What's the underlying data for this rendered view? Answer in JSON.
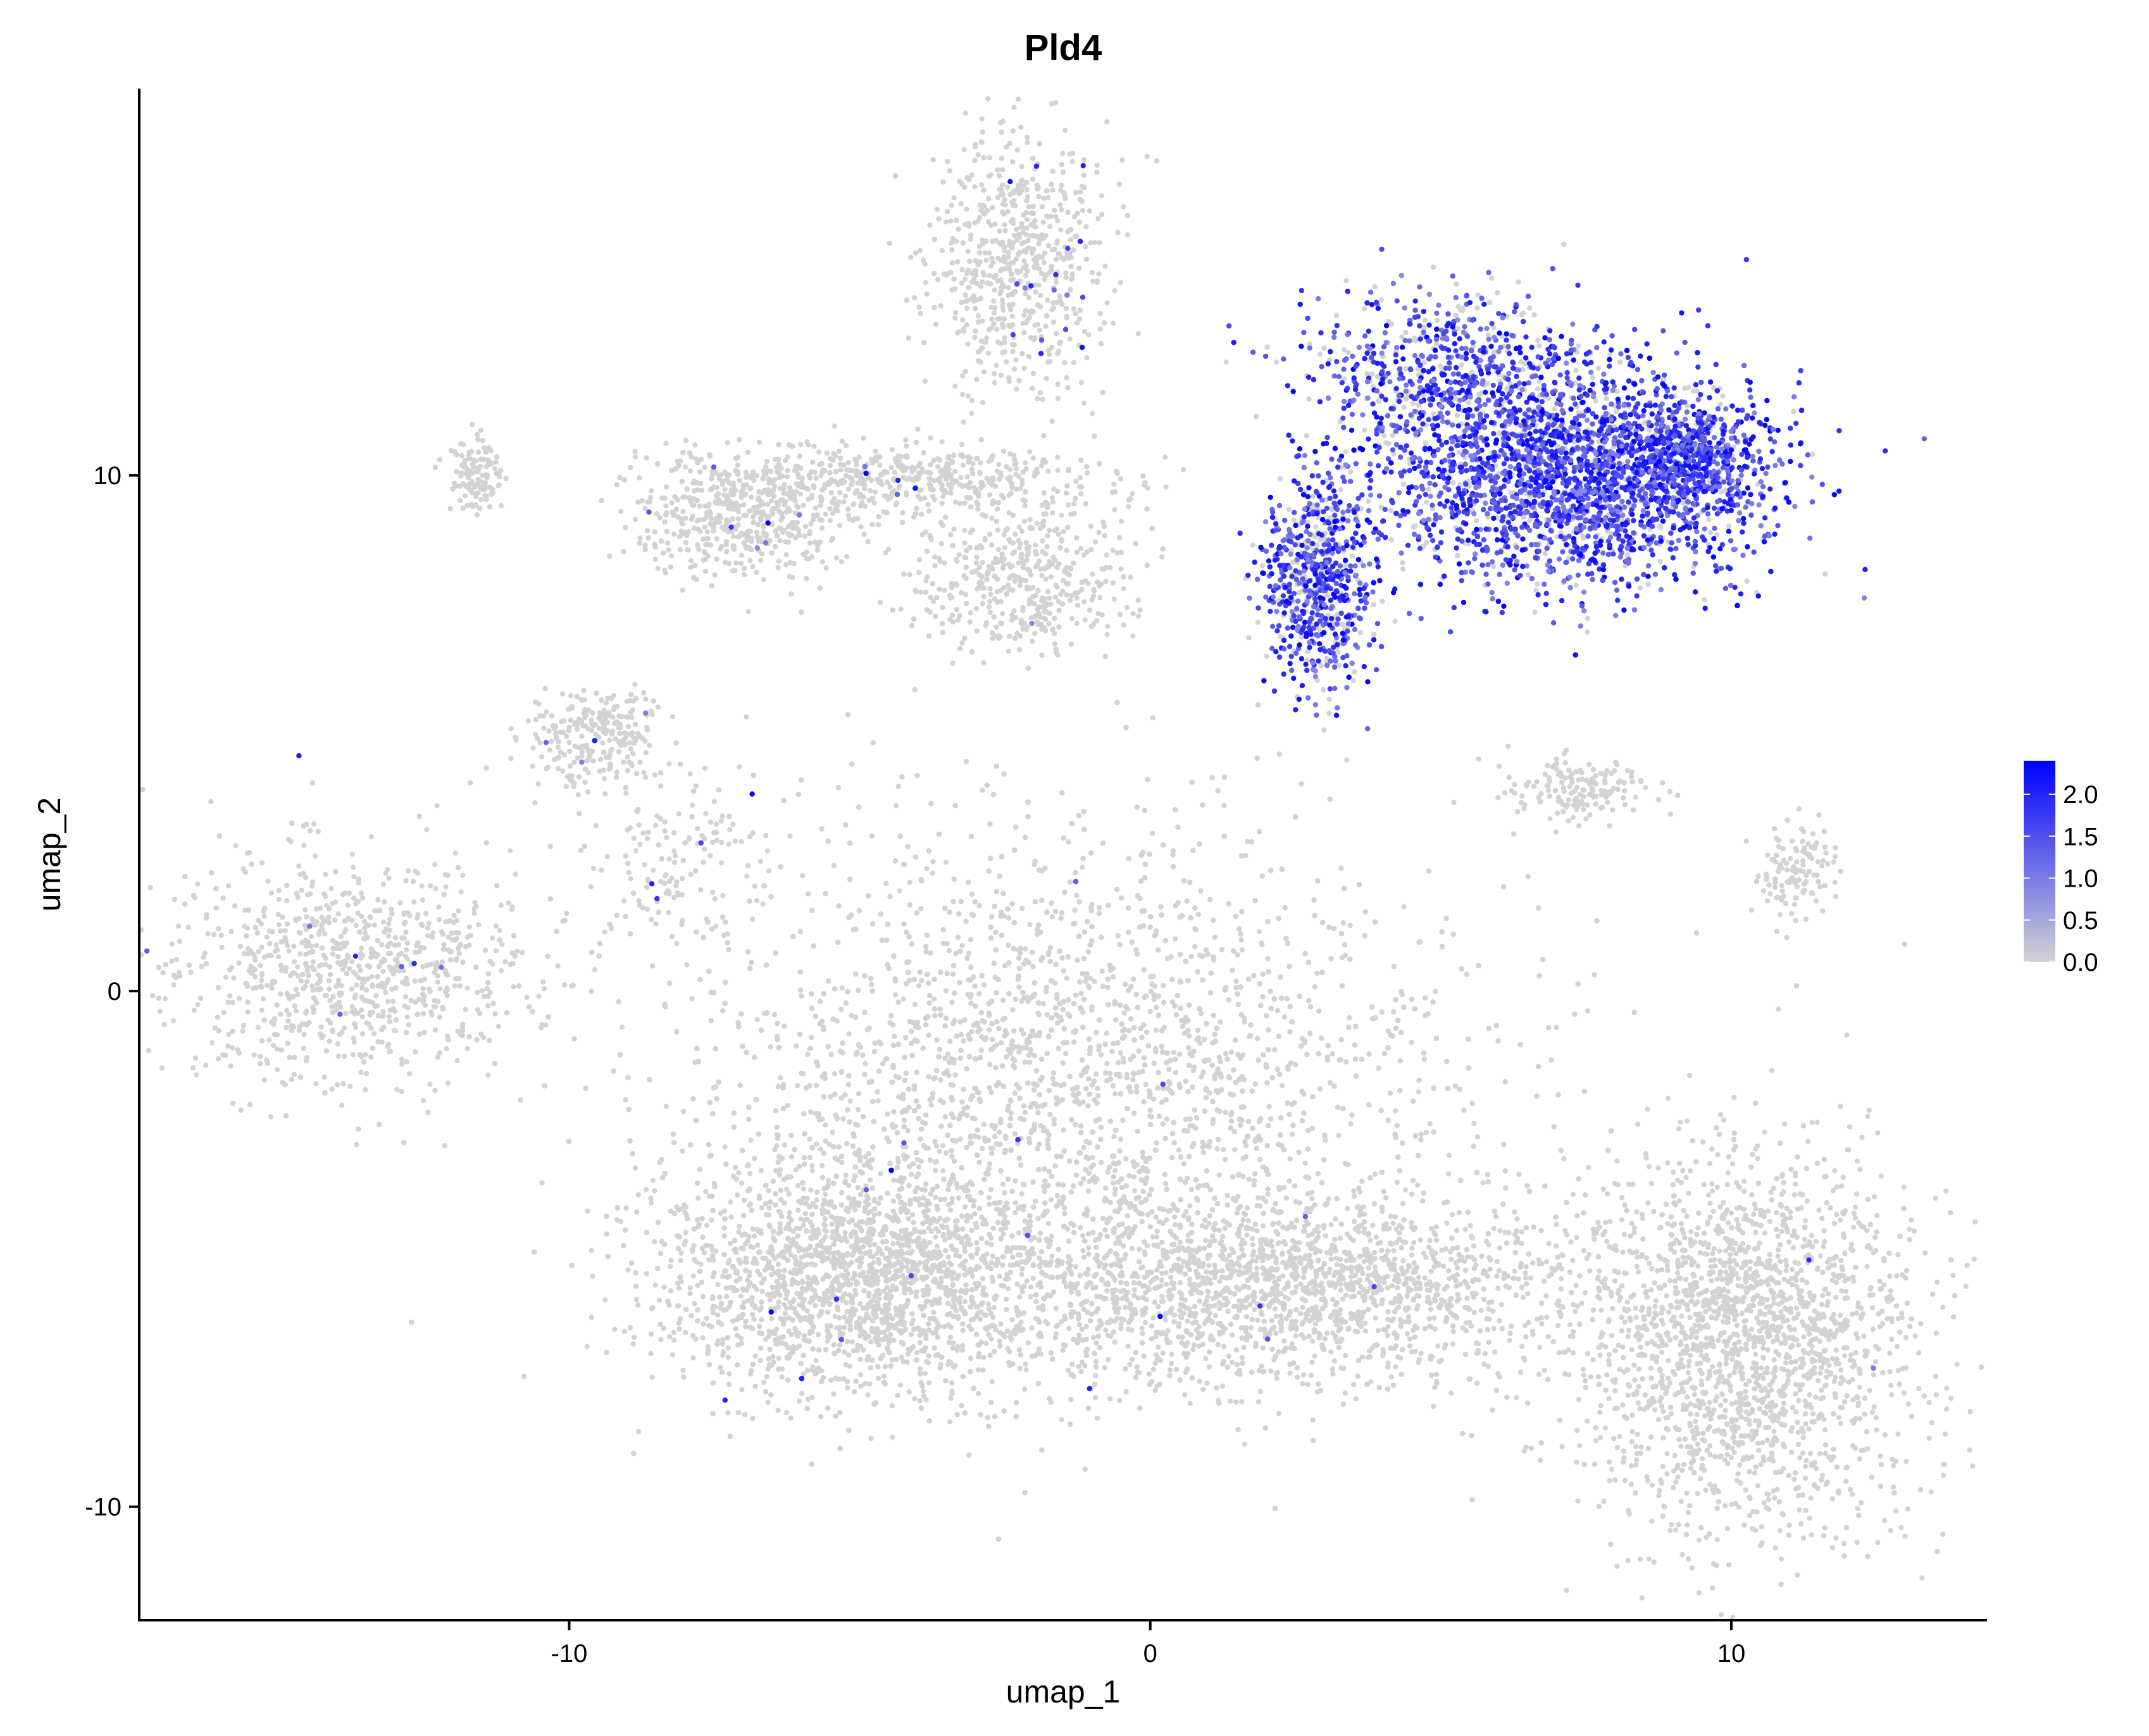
{
  "chart_data": {
    "type": "scatter",
    "title": "Pld4",
    "xlabel": "umap_1",
    "ylabel": "umap_2",
    "xlim": [
      -17.4,
      14.4
    ],
    "ylim": [
      -12.2,
      17.5
    ],
    "x_ticks": [
      -10,
      0,
      10
    ],
    "y_ticks": [
      -10,
      0,
      10
    ],
    "x_tick_labels": [
      "-10",
      "0",
      "10"
    ],
    "y_tick_labels": [
      "-10",
      "0",
      "10"
    ],
    "grid": false,
    "legend_placement": "right",
    "color_scale": {
      "low_color": "#d3d3d3",
      "high_color": "#0000ff",
      "range": [
        0,
        2.4
      ],
      "ticks": [
        0.0,
        0.5,
        1.0,
        1.5,
        2.0
      ],
      "tick_labels": [
        "0.0",
        "0.5",
        "1.0",
        "1.5",
        "2.0"
      ]
    },
    "clusters": [
      {
        "id": "top-small",
        "cx": -2.3,
        "cy": 14.2,
        "sx": 0.75,
        "sy": 1.3,
        "n": 650,
        "expr_frac": 0.02
      },
      {
        "id": "pld4-high-main",
        "cx": 7.2,
        "cy": 9.9,
        "sx": 1.6,
        "sy": 1.0,
        "n": 2600,
        "expr_frac": 0.85
      },
      {
        "id": "pld4-high-upper",
        "cx": 5.3,
        "cy": 12.0,
        "sx": 1.3,
        "sy": 0.75,
        "n": 700,
        "expr_frac": 0.75
      },
      {
        "id": "pld4-high-right",
        "cx": 9.2,
        "cy": 10.4,
        "sx": 0.6,
        "sy": 0.5,
        "n": 500,
        "expr_frac": 0.9
      },
      {
        "id": "pld4-high-left",
        "cx": 2.9,
        "cy": 8.0,
        "sx": 0.45,
        "sy": 1.0,
        "n": 700,
        "expr_frac": 0.75
      },
      {
        "id": "tiny-left",
        "cx": -11.6,
        "cy": 10.0,
        "sx": 0.25,
        "sy": 0.35,
        "n": 120,
        "expr_frac": 0.0
      },
      {
        "id": "arc-left",
        "cx": -7.0,
        "cy": 9.2,
        "sx": 0.9,
        "sy": 0.6,
        "n": 500,
        "expr_frac": 0.01
      },
      {
        "id": "arc-top",
        "cx": -4.2,
        "cy": 9.9,
        "sx": 1.6,
        "sy": 0.35,
        "n": 500,
        "expr_frac": 0.01
      },
      {
        "id": "arc-right",
        "cx": -2.2,
        "cy": 8.0,
        "sx": 0.9,
        "sy": 0.7,
        "n": 450,
        "expr_frac": 0.01
      },
      {
        "id": "upper-left-small",
        "cx": -9.6,
        "cy": 5.0,
        "sx": 0.55,
        "sy": 0.45,
        "n": 250,
        "expr_frac": 0.02
      },
      {
        "id": "left-stream",
        "cx": -8.2,
        "cy": 2.8,
        "sx": 0.9,
        "sy": 1.0,
        "n": 150,
        "expr_frac": 0.02
      },
      {
        "id": "left-mid",
        "cx": -13.8,
        "cy": 0.4,
        "sx": 1.5,
        "sy": 1.1,
        "n": 900,
        "expr_frac": 0.01
      },
      {
        "id": "right-small",
        "cx": 7.4,
        "cy": 3.9,
        "sx": 0.6,
        "sy": 0.3,
        "n": 160,
        "expr_frac": 0.0
      },
      {
        "id": "far-right-small",
        "cx": 11.1,
        "cy": 2.3,
        "sx": 0.35,
        "sy": 0.45,
        "n": 120,
        "expr_frac": 0.0
      },
      {
        "id": "main-core",
        "cx": -1.5,
        "cy": -2.0,
        "sx": 3.3,
        "sy": 2.6,
        "n": 7000,
        "expr_frac": 0.004
      },
      {
        "id": "main-lower-left",
        "cx": -5.0,
        "cy": -5.6,
        "sx": 1.7,
        "sy": 1.1,
        "n": 1800,
        "expr_frac": 0.004
      },
      {
        "id": "main-lower-mid",
        "cx": 2.5,
        "cy": -5.8,
        "sx": 2.6,
        "sy": 0.9,
        "n": 1800,
        "expr_frac": 0.004
      },
      {
        "id": "lower-right",
        "cx": 10.3,
        "cy": -6.8,
        "sx": 1.4,
        "sy": 1.8,
        "n": 2000,
        "expr_frac": 0.004
      }
    ]
  }
}
